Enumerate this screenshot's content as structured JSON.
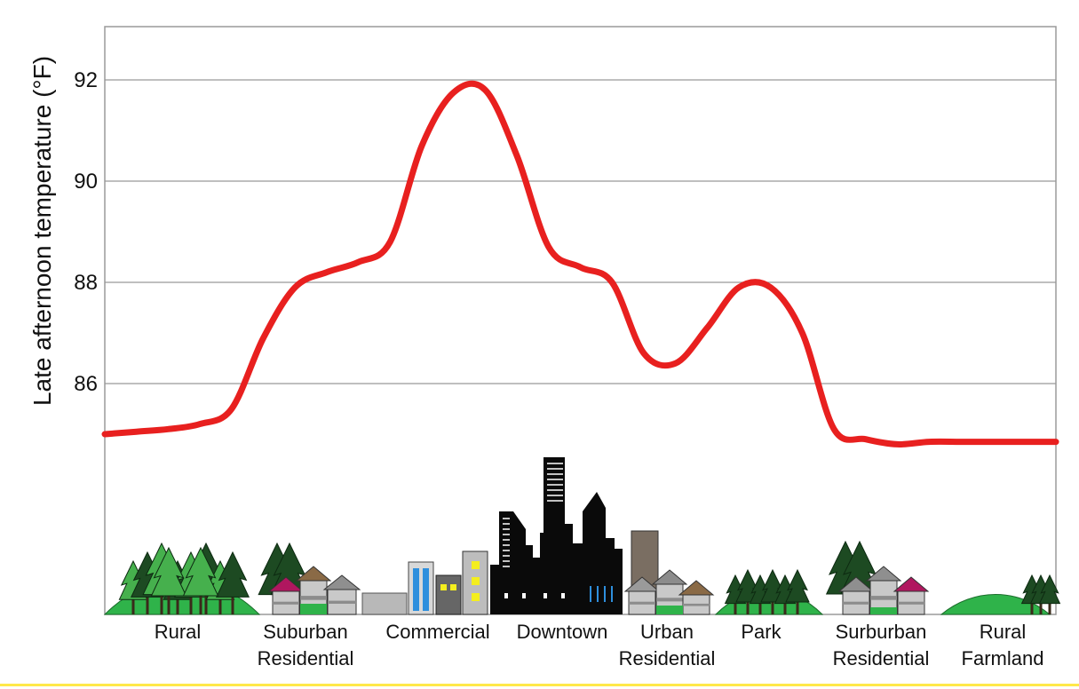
{
  "chart_data": {
    "type": "line",
    "title": "",
    "ylabel": "Late afternoon temperature (°F)",
    "xlabel": "",
    "ylim": [
      84,
      93
    ],
    "yticks": [
      86,
      88,
      90,
      92
    ],
    "grid": true,
    "categories": [
      "Rural",
      "Suburban Residential",
      "Commercial",
      "Downtown",
      "Urban Residential",
      "Park",
      "Surburban Residential",
      "Rural Farmland"
    ],
    "regions": [
      {
        "label_line1": "Rural",
        "label_line2": ""
      },
      {
        "label_line1": "Suburban",
        "label_line2": "Residential"
      },
      {
        "label_line1": "Commercial",
        "label_line2": ""
      },
      {
        "label_line1": "Downtown",
        "label_line2": ""
      },
      {
        "label_line1": "Urban",
        "label_line2": "Residential"
      },
      {
        "label_line1": "Park",
        "label_line2": ""
      },
      {
        "label_line1": "Surburban",
        "label_line2": "Residential"
      },
      {
        "label_line1": "Rural",
        "label_line2": "Farmland"
      }
    ],
    "series": [
      {
        "color": "#e8201f",
        "x": [
          0,
          0.25,
          0.5,
          0.75,
          1,
          1.25,
          1.5,
          1.75,
          2,
          2.25,
          2.5,
          2.75,
          3,
          3.25,
          3.5,
          3.75,
          4,
          4.25,
          4.5,
          4.75,
          5,
          5.25,
          5.5,
          5.75,
          6,
          6.25,
          6.5,
          6.75,
          7,
          7.25,
          7.5
        ],
        "values": [
          85.0,
          85.05,
          85.1,
          85.2,
          85.5,
          86.9,
          87.9,
          88.2,
          88.4,
          88.8,
          90.7,
          91.75,
          91.8,
          90.5,
          88.7,
          88.3,
          88.0,
          86.6,
          86.4,
          87.1,
          87.9,
          87.9,
          87.0,
          85.1,
          84.9,
          84.8,
          84.85,
          84.85,
          84.85,
          84.85,
          84.85
        ]
      }
    ]
  },
  "colors": {
    "line": "#e8201f",
    "grid": "#999999",
    "grass": "#2fb34a",
    "tree_light": "#46b04d",
    "tree_dark": "#1d4a22",
    "building_black": "#0a0a0a",
    "accent_roof_magenta": "#b0175f",
    "accent_roof_brown": "#8a6a46",
    "window_yellow": "#f4ee1e",
    "window_blue": "#2e8fdd"
  }
}
